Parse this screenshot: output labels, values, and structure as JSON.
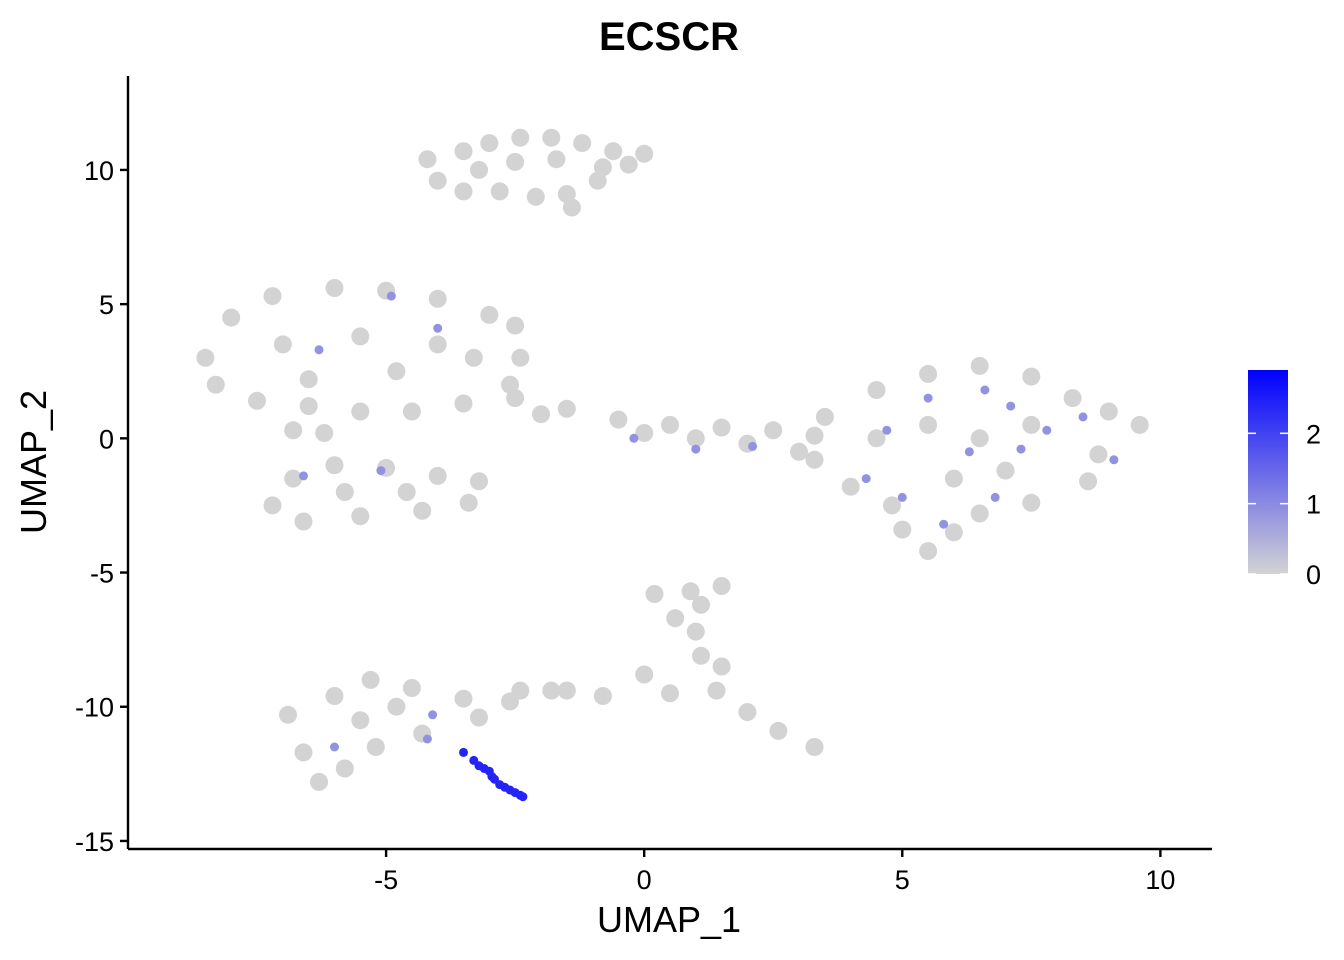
{
  "chart_data": {
    "type": "scatter",
    "title": "ECSCR",
    "xlabel": "UMAP_1",
    "ylabel": "UMAP_2",
    "xlim": [
      -10,
      11
    ],
    "ylim": [
      -15.3,
      13.5
    ],
    "x_ticks": [
      {
        "value": -5,
        "label": "-5"
      },
      {
        "value": 0,
        "label": "0"
      },
      {
        "value": 5,
        "label": "5"
      },
      {
        "value": 10,
        "label": "10"
      }
    ],
    "y_ticks": [
      {
        "value": 10,
        "label": "10"
      },
      {
        "value": 5,
        "label": "5"
      },
      {
        "value": 0,
        "label": "0"
      },
      {
        "value": -5,
        "label": "-5"
      },
      {
        "value": -10,
        "label": "-10"
      },
      {
        "value": -15,
        "label": "-15"
      }
    ],
    "grid": false,
    "legend_position": "right",
    "color_scale": {
      "low_color": "#d3d3d3",
      "high_color": "#0000ff",
      "min": 0,
      "max": 2.9,
      "ticks": [
        {
          "value": 0,
          "label": "0"
        },
        {
          "value": 1,
          "label": "1"
        },
        {
          "value": 2,
          "label": "2"
        }
      ]
    },
    "clusters": [
      {
        "points": [
          [
            -4.2,
            10.4
          ],
          [
            -3.5,
            10.7
          ],
          [
            -3.0,
            11.0
          ],
          [
            -2.4,
            11.2
          ],
          [
            -1.8,
            11.2
          ],
          [
            -1.2,
            11.0
          ],
          [
            -0.6,
            10.7
          ],
          [
            0.0,
            10.6
          ],
          [
            -0.3,
            10.2
          ],
          [
            -0.9,
            9.6
          ],
          [
            -1.5,
            9.1
          ],
          [
            -1.4,
            8.6
          ],
          [
            -2.1,
            9.0
          ],
          [
            -2.8,
            9.2
          ],
          [
            -3.5,
            9.2
          ],
          [
            -4.0,
            9.6
          ],
          [
            -2.5,
            10.3
          ],
          [
            -1.7,
            10.4
          ],
          [
            -3.2,
            10.0
          ],
          [
            -0.8,
            10.1
          ]
        ],
        "expression": 0
      },
      {
        "points": [
          [
            -8.5,
            3.0
          ],
          [
            -8.0,
            4.5
          ],
          [
            -7.2,
            5.3
          ],
          [
            -6.0,
            5.6
          ],
          [
            -5.0,
            5.5
          ],
          [
            -4.0,
            5.2
          ],
          [
            -3.0,
            4.6
          ],
          [
            -2.5,
            4.2
          ],
          [
            -2.4,
            3.0
          ],
          [
            -2.6,
            2.0
          ],
          [
            -3.5,
            1.3
          ],
          [
            -4.5,
            1.0
          ],
          [
            -5.5,
            1.0
          ],
          [
            -6.5,
            1.2
          ],
          [
            -7.5,
            1.4
          ],
          [
            -8.3,
            2.0
          ],
          [
            -7.0,
            3.5
          ],
          [
            -5.5,
            3.8
          ],
          [
            -4.0,
            3.5
          ],
          [
            -6.5,
            2.2
          ],
          [
            -4.8,
            2.5
          ],
          [
            -3.3,
            3.0
          ]
        ],
        "expression": 0
      },
      {
        "points": [
          [
            -2.5,
            1.5
          ],
          [
            -1.5,
            1.1
          ],
          [
            -0.5,
            0.7
          ],
          [
            0.5,
            0.5
          ],
          [
            1.5,
            0.4
          ],
          [
            2.5,
            0.3
          ],
          [
            3.3,
            0.1
          ],
          [
            -2.0,
            0.9
          ],
          [
            0.0,
            0.2
          ],
          [
            1.0,
            0.0
          ],
          [
            2.0,
            -0.2
          ],
          [
            3.0,
            -0.5
          ]
        ],
        "expression": 0
      },
      {
        "points": [
          [
            -7.2,
            -2.5
          ],
          [
            -6.8,
            -1.5
          ],
          [
            -6.0,
            -1.0
          ],
          [
            -5.0,
            -1.1
          ],
          [
            -4.0,
            -1.4
          ],
          [
            -3.2,
            -1.6
          ],
          [
            -3.4,
            -2.4
          ],
          [
            -4.3,
            -2.7
          ],
          [
            -5.5,
            -2.9
          ],
          [
            -6.6,
            -3.1
          ],
          [
            -5.8,
            -2.0
          ],
          [
            -4.6,
            -2.0
          ],
          [
            -6.8,
            0.3
          ],
          [
            -6.2,
            0.2
          ]
        ],
        "expression": 0
      },
      {
        "points": [
          [
            3.5,
            0.8
          ],
          [
            4.5,
            1.8
          ],
          [
            5.5,
            2.4
          ],
          [
            6.5,
            2.7
          ],
          [
            7.5,
            2.3
          ],
          [
            8.3,
            1.5
          ],
          [
            9.0,
            1.0
          ],
          [
            9.6,
            0.5
          ],
          [
            8.8,
            -0.6
          ],
          [
            8.6,
            -1.6
          ],
          [
            7.5,
            -2.4
          ],
          [
            6.5,
            -2.8
          ],
          [
            6.0,
            -3.5
          ],
          [
            5.5,
            -4.2
          ],
          [
            5.0,
            -3.4
          ],
          [
            4.8,
            -2.5
          ],
          [
            4.0,
            -1.8
          ],
          [
            3.3,
            -0.8
          ],
          [
            5.5,
            0.5
          ],
          [
            6.5,
            0.0
          ],
          [
            7.5,
            0.5
          ],
          [
            6.0,
            -1.5
          ],
          [
            7.0,
            -1.2
          ],
          [
            4.5,
            0.0
          ]
        ],
        "expression": 0
      },
      {
        "points": [
          [
            0.2,
            -5.8
          ],
          [
            0.9,
            -5.7
          ],
          [
            1.5,
            -5.5
          ],
          [
            1.1,
            -6.2
          ],
          [
            0.6,
            -6.7
          ],
          [
            1.0,
            -7.2
          ],
          [
            1.1,
            -8.1
          ],
          [
            1.5,
            -8.5
          ],
          [
            1.4,
            -9.4
          ],
          [
            0.5,
            -9.5
          ],
          [
            -0.8,
            -9.6
          ],
          [
            -1.5,
            -9.4
          ],
          [
            0.0,
            -8.8
          ],
          [
            2.0,
            -10.2
          ],
          [
            2.6,
            -10.9
          ],
          [
            3.3,
            -11.5
          ]
        ],
        "expression": 0
      },
      {
        "points": [
          [
            -6.9,
            -10.3
          ],
          [
            -6.0,
            -9.6
          ],
          [
            -5.3,
            -9.0
          ],
          [
            -4.5,
            -9.3
          ],
          [
            -3.5,
            -9.7
          ],
          [
            -2.6,
            -9.8
          ],
          [
            -2.4,
            -9.4
          ],
          [
            -3.2,
            -10.4
          ],
          [
            -4.3,
            -11.0
          ],
          [
            -5.2,
            -11.5
          ],
          [
            -5.8,
            -12.3
          ],
          [
            -6.3,
            -12.8
          ],
          [
            -6.6,
            -11.7
          ],
          [
            -5.5,
            -10.5
          ],
          [
            -4.8,
            -10.0
          ],
          [
            -1.8,
            -9.4
          ]
        ],
        "expression": 0
      },
      {
        "points": [
          [
            -4.9,
            5.3
          ],
          [
            -6.3,
            3.3
          ],
          [
            -4.0,
            4.1
          ],
          [
            -5.1,
            -1.2
          ],
          [
            -6.6,
            -1.4
          ],
          [
            -4.2,
            -11.2
          ],
          [
            -6.0,
            -11.5
          ],
          [
            -4.1,
            -10.3
          ],
          [
            -0.2,
            0.0
          ],
          [
            2.1,
            -0.3
          ],
          [
            1.0,
            -0.4
          ],
          [
            4.7,
            0.3
          ],
          [
            5.5,
            1.5
          ],
          [
            6.3,
            -0.5
          ],
          [
            7.1,
            1.2
          ],
          [
            7.8,
            0.3
          ],
          [
            8.5,
            0.8
          ],
          [
            4.3,
            -1.5
          ],
          [
            6.8,
            -2.2
          ],
          [
            5.8,
            -3.2
          ],
          [
            7.3,
            -0.4
          ],
          [
            9.1,
            -0.8
          ],
          [
            5.0,
            -2.2
          ],
          [
            6.6,
            1.8
          ]
        ],
        "expression": 0.9
      },
      {
        "points": [
          [
            -3.5,
            -11.7
          ],
          [
            -3.3,
            -12.0
          ],
          [
            -3.2,
            -12.2
          ],
          [
            -3.1,
            -12.3
          ],
          [
            -3.0,
            -12.4
          ],
          [
            -2.95,
            -12.6
          ],
          [
            -2.9,
            -12.7
          ],
          [
            -2.8,
            -12.9
          ],
          [
            -2.7,
            -13.0
          ],
          [
            -2.6,
            -13.1
          ],
          [
            -2.5,
            -13.2
          ],
          [
            -2.4,
            -13.3
          ],
          [
            -2.35,
            -13.35
          ]
        ],
        "expression": 2.4
      }
    ]
  }
}
